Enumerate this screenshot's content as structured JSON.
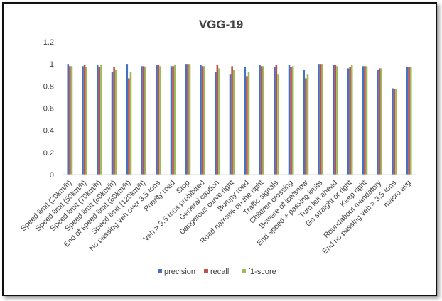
{
  "chart_data": {
    "type": "bar",
    "title": "VGG-19",
    "xlabel": "",
    "ylabel": "",
    "ylim": [
      0,
      1.2
    ],
    "yticks": [
      "0",
      "0.2",
      "0.4",
      "0.6",
      "0.8",
      "1",
      "1.2"
    ],
    "legend_position": "bottom",
    "categories": [
      "Speed limit (20km/h)",
      "Speed limit (50km/h)",
      "Speed limit (70km/h)",
      "Speed limit (80km/h)",
      "End of speed limit (80km/h)",
      "Speed limit (120km/h)",
      "No passing veh over 3.5 tons",
      "Priority road",
      "Stop",
      "Veh > 3.5 tons prohibited",
      "General caution",
      "Dangerous curve right",
      "Bumpy road",
      "Road narrows on the right",
      "Traffic signals",
      "Children crossing",
      "Beware of ice/snow",
      "End speed + passing limits",
      "Turn left ahead",
      "Go straight or right",
      "Keep right",
      "Roundabout mandatory",
      "End no passing veh > 3.5 tons",
      "macro avg"
    ],
    "labeled_categories": [
      "Speed limit (20km/h)",
      "Speed limit (50km/h)",
      "Speed limit (70km/h)",
      "Speed limit (80km/h)",
      "End of speed limit (80km/h)",
      "Speed limit (120km/h)",
      "No passing veh over 3.5 tons",
      "Priority road",
      "Stop",
      "Veh > 3.5 tons prohibited",
      "General caution",
      "Dangerous curve right",
      "Bumpy road",
      "Road narrows on the right",
      "Traffic signals",
      "Children crossing",
      "Beware of ice/snow",
      "End speed + passing limits",
      "Turn left ahead",
      "Go straight or right",
      "Keep right",
      "Roundabout mandatory",
      "End no passing veh > 3.5 tons",
      "macro avg"
    ],
    "series": [
      {
        "name": "precision",
        "color": "#4472C4",
        "values": [
          1.0,
          0.98,
          0.99,
          0.93,
          1.0,
          0.98,
          0.99,
          0.98,
          1.0,
          0.99,
          0.93,
          0.91,
          0.97,
          0.99,
          0.97,
          0.99,
          0.95,
          1.0,
          0.99,
          0.96,
          0.98,
          0.95,
          0.78,
          0.97
        ]
      },
      {
        "name": "recall",
        "color": "#C0504D",
        "values": [
          0.98,
          0.99,
          0.97,
          0.97,
          0.87,
          0.98,
          0.99,
          0.98,
          1.0,
          0.98,
          0.99,
          0.98,
          0.89,
          0.98,
          0.99,
          0.97,
          0.87,
          1.0,
          0.99,
          0.97,
          0.98,
          0.96,
          0.77,
          0.97
        ]
      },
      {
        "name": "f1-score",
        "color": "#9BBB59",
        "values": [
          0.98,
          0.97,
          0.99,
          0.95,
          0.93,
          0.97,
          0.98,
          0.99,
          1.0,
          0.98,
          0.96,
          0.95,
          0.93,
          0.98,
          0.91,
          0.98,
          0.91,
          1.0,
          0.98,
          0.99,
          0.98,
          0.96,
          0.77,
          0.97
        ]
      }
    ],
    "grid": false
  }
}
